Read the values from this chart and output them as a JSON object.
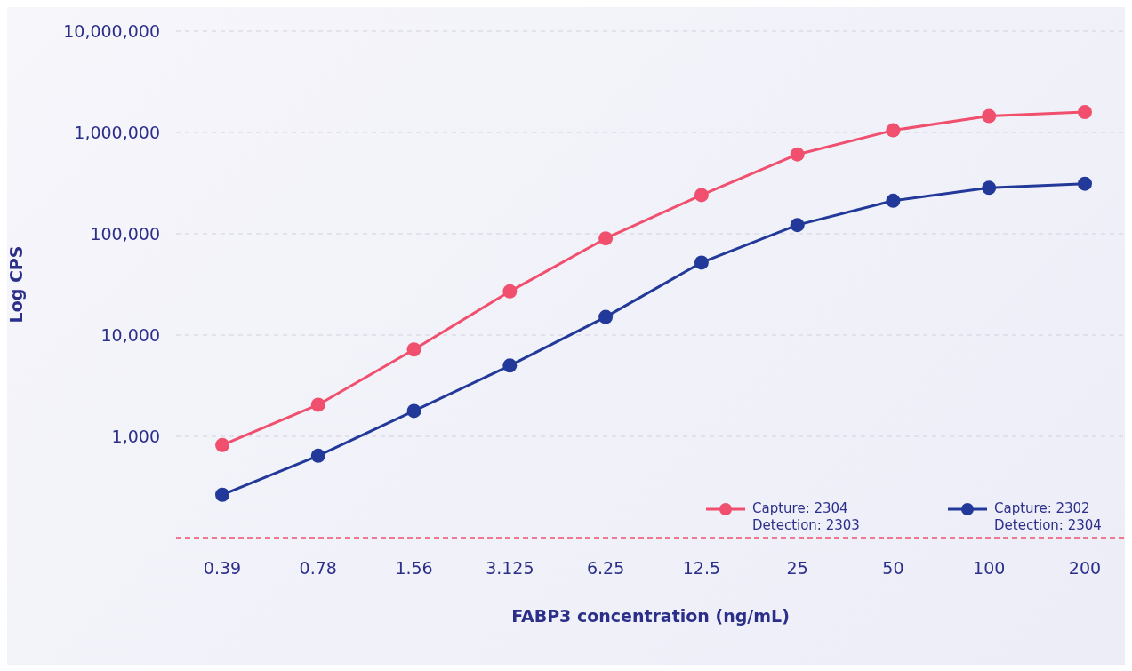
{
  "chart_data": {
    "type": "line",
    "xlabel": "FABP3 concentration (ng/mL)",
    "ylabel": "Log CPS",
    "categories": [
      "0.39",
      "0.78",
      "1.56",
      "3.125",
      "6.25",
      "12.5",
      "25",
      "50",
      "100",
      "200"
    ],
    "series": [
      {
        "name": "Capture: 2304 Detection: 2303",
        "color": "#f0506e",
        "values": [
          820,
          2050,
          7200,
          27000,
          90000,
          241000,
          607000,
          1050000,
          1450000,
          1590000
        ]
      },
      {
        "name": "Capture: 2302 Detection: 2304",
        "color": "#22399a",
        "values": [
          265,
          643,
          1780,
          5000,
          15100,
          52000,
          122000,
          212000,
          284000,
          312000
        ]
      }
    ],
    "log": "y",
    "ylim": [
      100,
      10000000
    ],
    "yticks": [
      {
        "value": 1000,
        "label": "1,000"
      },
      {
        "value": 10000,
        "label": "10,000"
      },
      {
        "value": 100000,
        "label": "100,000"
      },
      {
        "value": 1000000,
        "label": "1,000,000"
      },
      {
        "value": 10000000,
        "label": "10,000,000"
      }
    ],
    "ref_lines": [
      {
        "axis": "y",
        "value": 100,
        "label": null,
        "color": "#f0506e",
        "line_style": "dashed"
      }
    ],
    "grid": "y",
    "legend": "bottom right",
    "marker": "circle",
    "line_style": "solid"
  }
}
